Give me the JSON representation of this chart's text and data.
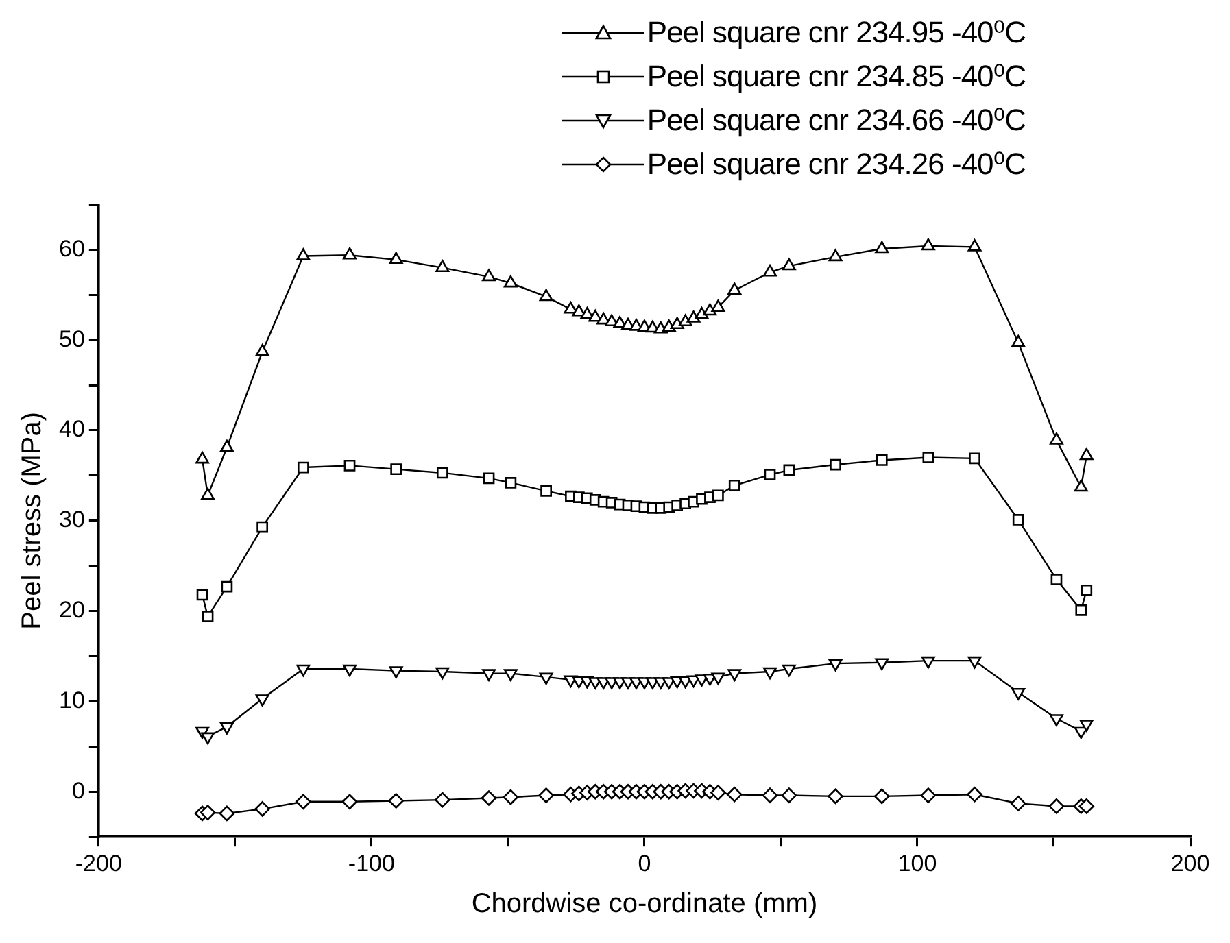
{
  "chart_data": {
    "type": "line",
    "xlabel": "Chordwise co-ordinate (mm)",
    "ylabel": "Peel stress (MPa)",
    "x": [
      -162,
      -160,
      -153,
      -140,
      -125,
      -108,
      -91,
      -74,
      -57,
      -49,
      -36,
      -27,
      -24,
      -21,
      -18,
      -15,
      -12,
      -9,
      -6,
      -3,
      0,
      3,
      6,
      9,
      12,
      15,
      18,
      21,
      24,
      27,
      33,
      46,
      53,
      70,
      87,
      104,
      121,
      137,
      151,
      160,
      162
    ],
    "series": [
      {
        "name": "Peel square cnr 234.95 -40⁰C",
        "color": "#000000",
        "marker": "triangle",
        "values": [
          36.8,
          32.8,
          38.1,
          48.7,
          59.3,
          59.4,
          58.9,
          58,
          57,
          56.3,
          54.8,
          53.4,
          53.1,
          52.8,
          52.5,
          52.2,
          52,
          51.8,
          51.6,
          51.5,
          51.4,
          51.3,
          51.2,
          51.4,
          51.7,
          52,
          52.4,
          52.8,
          53.2,
          53.6,
          55.5,
          57.5,
          58.2,
          59.2,
          60.1,
          60.4,
          60.3,
          49.7,
          38.9,
          33.7,
          37.2
        ]
      },
      {
        "name": "Peel square cnr 234.85 -40⁰C",
        "color": "#000000",
        "marker": "square",
        "values": [
          21.8,
          19.4,
          22.7,
          29.3,
          35.9,
          36.1,
          35.7,
          35.3,
          34.7,
          34.2,
          33.3,
          32.7,
          32.6,
          32.5,
          32.3,
          32.1,
          32,
          31.8,
          31.7,
          31.6,
          31.5,
          31.4,
          31.4,
          31.5,
          31.7,
          31.9,
          32.1,
          32.4,
          32.6,
          32.8,
          33.9,
          35.1,
          35.6,
          36.2,
          36.7,
          37,
          36.9,
          30.1,
          23.5,
          20.1,
          22.3
        ]
      },
      {
        "name": "Peel square cnr 234.66 -40⁰C",
        "color": "#000000",
        "marker": "triangle-down",
        "values": [
          6.7,
          6.1,
          7.2,
          10.3,
          13.6,
          13.6,
          13.4,
          13.3,
          13.1,
          13.1,
          12.7,
          12.4,
          12.3,
          12.3,
          12.2,
          12.2,
          12.2,
          12.2,
          12.2,
          12.2,
          12.2,
          12.2,
          12.2,
          12.2,
          12.3,
          12.3,
          12.4,
          12.5,
          12.6,
          12.7,
          13.1,
          13.3,
          13.6,
          14.2,
          14.3,
          14.5,
          14.5,
          11,
          8.1,
          6.7,
          7.5
        ]
      },
      {
        "name": "Peel square cnr 234.26 -40⁰C",
        "color": "#000000",
        "marker": "diamond",
        "values": [
          -2.4,
          -2.3,
          -2.4,
          -1.9,
          -1.1,
          -1.1,
          -1,
          -0.9,
          -0.7,
          -0.6,
          -0.4,
          -0.3,
          -0.2,
          -0.1,
          0,
          0,
          0,
          0,
          0,
          0,
          0,
          0,
          0,
          0,
          0,
          0.1,
          0.1,
          0.1,
          0,
          -0.1,
          -0.3,
          -0.4,
          -0.4,
          -0.5,
          -0.5,
          -0.4,
          -0.3,
          -1.3,
          -1.6,
          -1.6,
          -1.6
        ]
      }
    ],
    "xlim": [
      -200,
      200
    ],
    "xticks": [
      -200,
      {
        "value": -150,
        "label": null
      },
      -100,
      {
        "value": -50,
        "label": null
      },
      0,
      {
        "value": 50,
        "label": null
      },
      100,
      {
        "value": 150,
        "label": null
      },
      200
    ],
    "ylim": [
      -5,
      65
    ],
    "yticks": [
      {
        "value": -5,
        "label": null
      },
      0,
      {
        "value": 5,
        "label": null
      },
      10,
      {
        "value": 15,
        "label": null
      },
      20,
      {
        "value": 25,
        "label": null
      },
      30,
      {
        "value": 35,
        "label": null
      },
      40,
      {
        "value": 45,
        "label": null
      },
      50,
      {
        "value": 55,
        "label": null
      },
      60,
      {
        "value": 65,
        "label": null
      }
    ],
    "grid": false,
    "legend": "top right",
    "line_style": "solid"
  }
}
